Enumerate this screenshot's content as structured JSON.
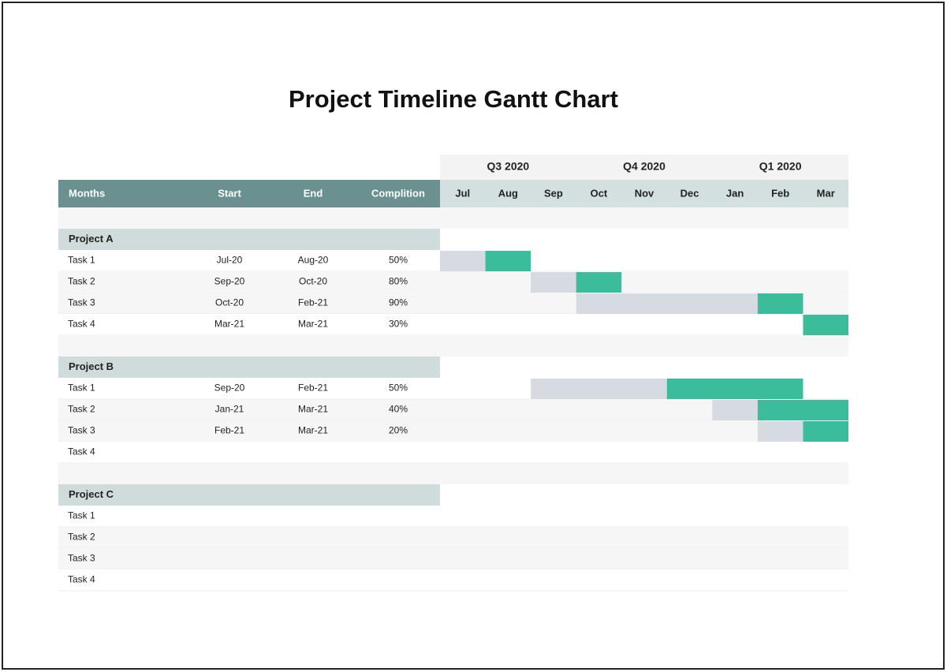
{
  "title": "Project Timeline Gantt Chart",
  "quarters": [
    "Q3 2020",
    "Q4 2020",
    "Q1 2020"
  ],
  "header": {
    "columns": [
      "Months",
      "Start",
      "End",
      "Complition"
    ],
    "months": [
      "Jul",
      "Aug",
      "Sep",
      "Oct",
      "Nov",
      "Dec",
      "Jan",
      "Feb",
      "Mar"
    ]
  },
  "projects": [
    {
      "name": "Project A",
      "tasks": [
        {
          "name": "Task 1",
          "start": "Jul-20",
          "end": "Aug-20",
          "completion": "50%"
        },
        {
          "name": "Task 2",
          "start": "Sep-20",
          "end": "Oct-20",
          "completion": "80%"
        },
        {
          "name": "Task 3",
          "start": "Oct-20",
          "end": "Feb-21",
          "completion": "90%"
        },
        {
          "name": "Task 4",
          "start": "Mar-21",
          "end": "Mar-21",
          "completion": "30%"
        }
      ]
    },
    {
      "name": "Project B",
      "tasks": [
        {
          "name": "Task 1",
          "start": "Sep-20",
          "end": "Feb-21",
          "completion": "50%"
        },
        {
          "name": "Task 2",
          "start": "Jan-21",
          "end": "Mar-21",
          "completion": "40%"
        },
        {
          "name": "Task 3",
          "start": "Feb-21",
          "end": "Mar-21",
          "completion": "20%"
        },
        {
          "name": "Task 4"
        }
      ]
    },
    {
      "name": "Project C",
      "tasks": [
        {
          "name": "Task 1"
        },
        {
          "name": "Task 2"
        },
        {
          "name": "Task 3"
        },
        {
          "name": "Task 4"
        }
      ]
    }
  ]
}
